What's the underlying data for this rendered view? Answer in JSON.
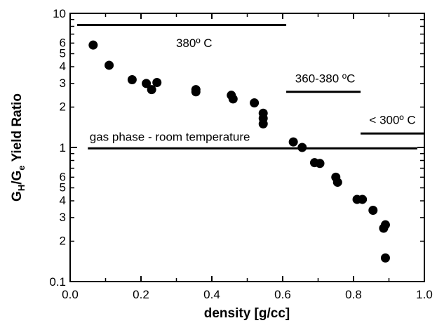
{
  "chart_data": {
    "type": "scatter",
    "xlabel": "density [g/cc]",
    "ylabel": "G_H/G_e Yield Ratio",
    "ylabel_parts": {
      "main": "G",
      "sub1": "H",
      "slash": "/G",
      "sub2": "e",
      "rest": " Yield Ratio"
    },
    "xlim": [
      0.0,
      1.0
    ],
    "ylim": [
      0.1,
      10
    ],
    "yscale": "log",
    "grid": false,
    "x_ticks": [
      {
        "value": 0.0,
        "label": "0.0"
      },
      {
        "value": 0.2,
        "label": "0.2"
      },
      {
        "value": 0.4,
        "label": "0.4"
      },
      {
        "value": 0.6,
        "label": "0.6"
      },
      {
        "value": 0.8,
        "label": "0.8"
      },
      {
        "value": 1.0,
        "label": "1.0"
      }
    ],
    "y_major_ticks": [
      {
        "value": 0.1,
        "label": "0.1"
      },
      {
        "value": 1,
        "label": "1"
      },
      {
        "value": 10,
        "label": "10"
      }
    ],
    "y_minor_ticks": [
      {
        "value": 0.2,
        "label": "2"
      },
      {
        "value": 0.3,
        "label": "3"
      },
      {
        "value": 0.4,
        "label": "4"
      },
      {
        "value": 0.5,
        "label": "5"
      },
      {
        "value": 0.6,
        "label": "6"
      },
      {
        "value": 0.7,
        "label": ""
      },
      {
        "value": 0.8,
        "label": ""
      },
      {
        "value": 0.9,
        "label": ""
      },
      {
        "value": 2,
        "label": "2"
      },
      {
        "value": 3,
        "label": "3"
      },
      {
        "value": 4,
        "label": "4"
      },
      {
        "value": 5,
        "label": "5"
      },
      {
        "value": 6,
        "label": "6"
      },
      {
        "value": 7,
        "label": ""
      },
      {
        "value": 8,
        "label": ""
      },
      {
        "value": 9,
        "label": ""
      }
    ],
    "points": [
      {
        "x": 0.065,
        "y": 5.8
      },
      {
        "x": 0.11,
        "y": 4.1
      },
      {
        "x": 0.175,
        "y": 3.2
      },
      {
        "x": 0.215,
        "y": 3.0
      },
      {
        "x": 0.23,
        "y": 2.7
      },
      {
        "x": 0.245,
        "y": 3.05
      },
      {
        "x": 0.355,
        "y": 2.7
      },
      {
        "x": 0.355,
        "y": 2.6
      },
      {
        "x": 0.455,
        "y": 2.45
      },
      {
        "x": 0.46,
        "y": 2.3
      },
      {
        "x": 0.52,
        "y": 2.15
      },
      {
        "x": 0.545,
        "y": 1.8
      },
      {
        "x": 0.545,
        "y": 1.65
      },
      {
        "x": 0.545,
        "y": 1.5
      },
      {
        "x": 0.63,
        "y": 1.1
      },
      {
        "x": 0.655,
        "y": 1.0
      },
      {
        "x": 0.69,
        "y": 0.77
      },
      {
        "x": 0.705,
        "y": 0.76
      },
      {
        "x": 0.75,
        "y": 0.6
      },
      {
        "x": 0.755,
        "y": 0.55
      },
      {
        "x": 0.81,
        "y": 0.41
      },
      {
        "x": 0.825,
        "y": 0.41
      },
      {
        "x": 0.855,
        "y": 0.34
      },
      {
        "x": 0.885,
        "y": 0.25
      },
      {
        "x": 0.89,
        "y": 0.265
      },
      {
        "x": 0.89,
        "y": 0.15
      }
    ],
    "annotations": [
      {
        "label": "380º C",
        "x_start": 0.02,
        "x_end": 0.61,
        "y": 8.2,
        "label_x": 0.35,
        "label_y": 5.6
      },
      {
        "label": "360-380 ºC",
        "x_start": 0.61,
        "x_end": 0.82,
        "y": 2.6,
        "label_x": 0.72,
        "label_y": 3.05
      },
      {
        "label": "< 300º C",
        "x_start": 0.82,
        "x_end": 1.0,
        "y": 1.27,
        "label_x": 0.91,
        "label_y": 1.5
      },
      {
        "label": "gas phase - room temperature",
        "x_start": 0.05,
        "x_end": 0.98,
        "y": 0.985,
        "label_x": 0.055,
        "label_y": 1.12
      }
    ]
  }
}
